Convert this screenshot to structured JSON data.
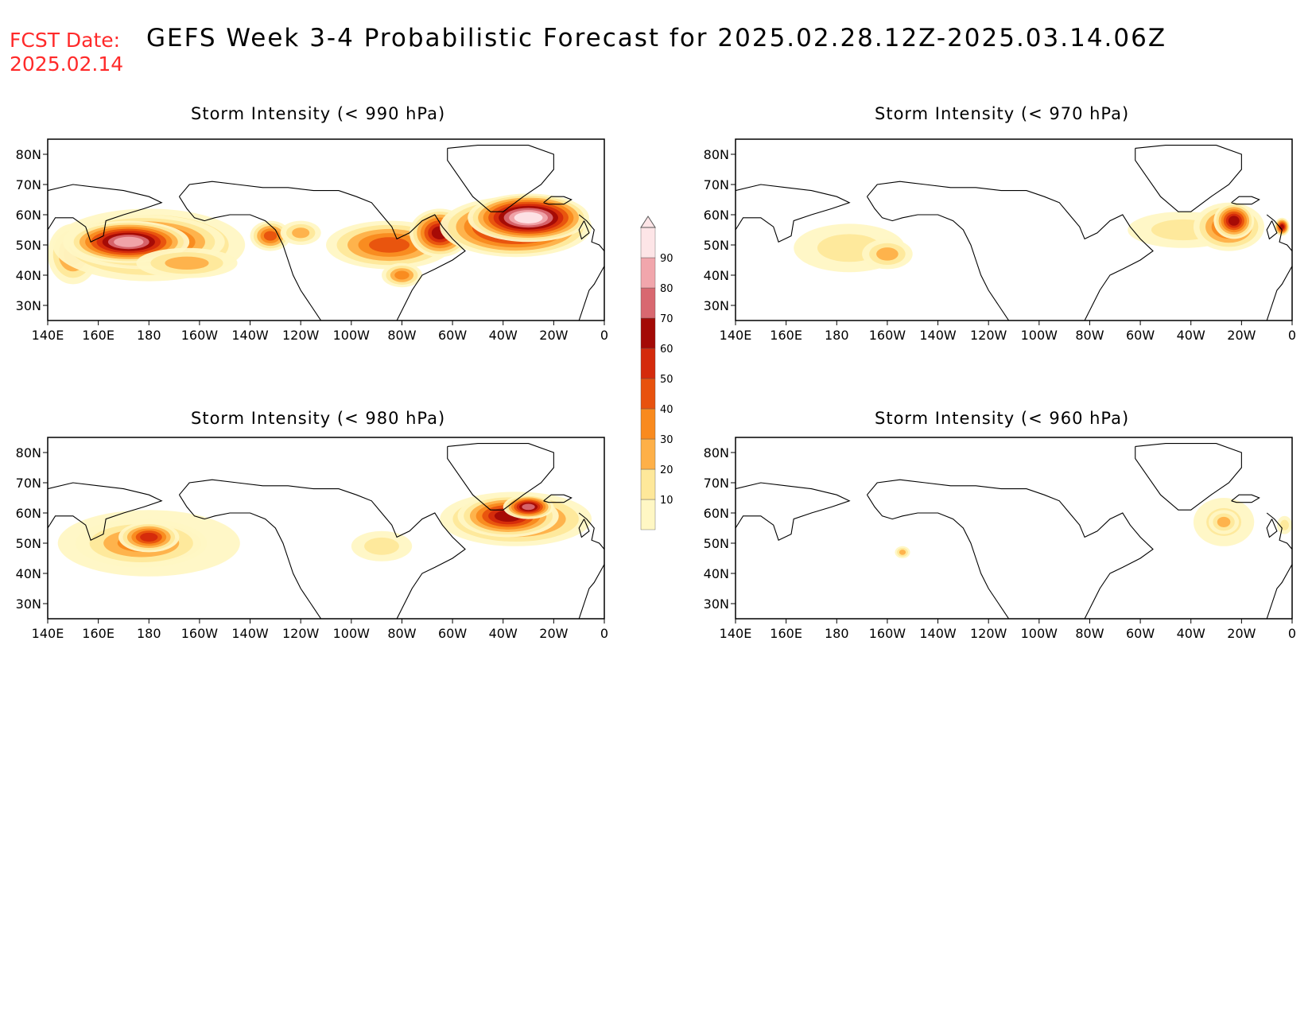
{
  "header": {
    "fcst_label": "FCST Date:",
    "fcst_date": "2025.02.14",
    "title": "GEFS Week 3-4 Probabilistic Forecast for 2025.02.28.12Z-2025.03.14.06Z"
  },
  "axes": {
    "lon_ticks": [
      "140E",
      "160E",
      "180",
      "160W",
      "140W",
      "120W",
      "100W",
      "80W",
      "60W",
      "40W",
      "20W",
      "0"
    ],
    "lat_ticks": [
      "80N",
      "70N",
      "60N",
      "50N",
      "40N",
      "30N"
    ],
    "lon_range": [
      140,
      360
    ],
    "lat_range": [
      25,
      85
    ]
  },
  "colorbar": {
    "levels": [
      "10",
      "20",
      "30",
      "40",
      "50",
      "60",
      "70",
      "80",
      "90"
    ],
    "colors": [
      "#fff7c4",
      "#fee89a",
      "#feb048",
      "#f98a1e",
      "#e8520e",
      "#d42a0c",
      "#a30a06",
      "#d86870",
      "#f1a6ac",
      "#fde5e7"
    ]
  },
  "panels": [
    {
      "id": "p990",
      "title": "Storm Intensity (< 990 hPa)",
      "blobs": [
        {
          "lon": 150,
          "lat": 47,
          "rlon": 10,
          "rlat": 10,
          "level": 3
        },
        {
          "lon": 180,
          "lat": 50,
          "rlon": 38,
          "rlat": 12,
          "level": 4
        },
        {
          "lon": 178,
          "lat": 51,
          "rlon": 32,
          "rlat": 9,
          "level": 6
        },
        {
          "lon": 172,
          "lat": 51,
          "rlon": 24,
          "rlat": 7,
          "level": 8
        },
        {
          "lon": 195,
          "lat": 44,
          "rlon": 20,
          "rlat": 5,
          "level": 2
        },
        {
          "lon": 228,
          "lat": 53,
          "rlon": 8,
          "rlat": 5,
          "level": 4
        },
        {
          "lon": 240,
          "lat": 54,
          "rlon": 8,
          "rlat": 4,
          "level": 2
        },
        {
          "lon": 275,
          "lat": 50,
          "rlon": 25,
          "rlat": 8,
          "level": 4
        },
        {
          "lon": 295,
          "lat": 54,
          "rlon": 12,
          "rlat": 8,
          "level": 6
        },
        {
          "lon": 280,
          "lat": 40,
          "rlon": 8,
          "rlat": 4,
          "level": 3
        },
        {
          "lon": 325,
          "lat": 56,
          "rlon": 30,
          "rlat": 10,
          "level": 7
        },
        {
          "lon": 330,
          "lat": 59,
          "rlon": 24,
          "rlat": 8,
          "level": 9
        }
      ]
    },
    {
      "id": "p970",
      "title": "Storm Intensity (< 970 hPa)",
      "blobs": [
        {
          "lon": 185,
          "lat": 49,
          "rlon": 22,
          "rlat": 8,
          "level": 1
        },
        {
          "lon": 200,
          "lat": 47,
          "rlon": 10,
          "rlat": 5,
          "level": 2
        },
        {
          "lon": 317,
          "lat": 55,
          "rlon": 22,
          "rlat": 6,
          "level": 1
        },
        {
          "lon": 335,
          "lat": 56,
          "rlon": 14,
          "rlat": 8,
          "level": 4
        },
        {
          "lon": 337,
          "lat": 58,
          "rlon": 8,
          "rlat": 6,
          "level": 6
        },
        {
          "lon": 356,
          "lat": 56,
          "rlon": 3,
          "rlat": 3,
          "level": 6
        }
      ]
    },
    {
      "id": "p980",
      "title": "Storm Intensity (< 980 hPa)",
      "blobs": [
        {
          "lon": 180,
          "lat": 50,
          "rlon": 36,
          "rlat": 11,
          "level": 1
        },
        {
          "lon": 177,
          "lat": 50,
          "rlon": 26,
          "rlat": 8,
          "level": 3
        },
        {
          "lon": 180,
          "lat": 52,
          "rlon": 12,
          "rlat": 5,
          "level": 5
        },
        {
          "lon": 272,
          "lat": 49,
          "rlon": 12,
          "rlat": 5,
          "level": 1
        },
        {
          "lon": 325,
          "lat": 58,
          "rlon": 30,
          "rlat": 9,
          "level": 4
        },
        {
          "lon": 322,
          "lat": 59,
          "rlon": 20,
          "rlat": 7,
          "level": 6
        },
        {
          "lon": 330,
          "lat": 62,
          "rlon": 10,
          "rlat": 4,
          "level": 7
        }
      ]
    },
    {
      "id": "p960",
      "title": "Storm Intensity (< 960 hPa)",
      "blobs": [
        {
          "lon": 206,
          "lat": 47,
          "rlon": 3,
          "rlat": 2,
          "level": 2
        },
        {
          "lon": 333,
          "lat": 57,
          "rlon": 12,
          "rlat": 8,
          "level": 1
        },
        {
          "lon": 333,
          "lat": 57,
          "rlon": 6,
          "rlat": 4,
          "level": 2
        },
        {
          "lon": 357,
          "lat": 56,
          "rlon": 3,
          "rlat": 3,
          "level": 1
        }
      ]
    }
  ]
}
